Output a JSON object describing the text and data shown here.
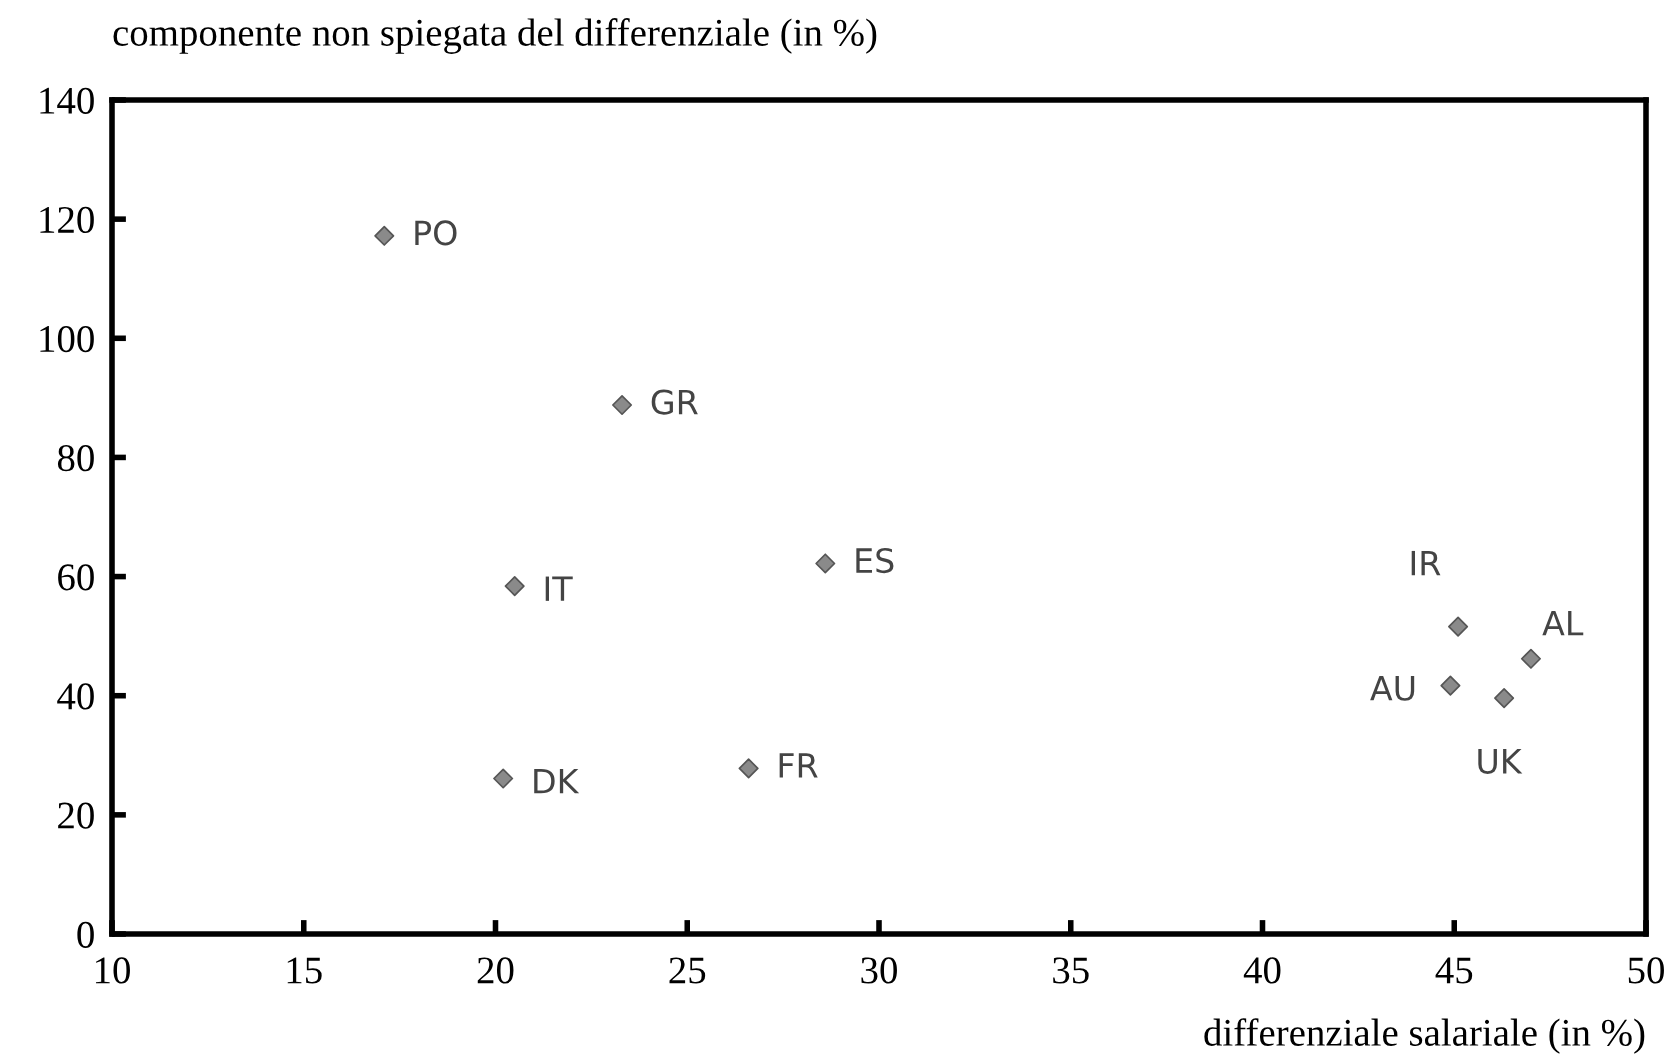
{
  "chart_data": {
    "type": "scatter",
    "ylabel": "componente non spiegata del differenziale (in %)",
    "xlabel": "differenziale salariale (in %)",
    "x": [
      17.1,
      23.3,
      20.5,
      28.6,
      20.2,
      26.6,
      45.1,
      47.0,
      44.9,
      46.3
    ],
    "series": [
      {
        "color": "#8a8a8a",
        "values": [
          117.2,
          88.8,
          58.4,
          62.2,
          26.1,
          27.8,
          51.6,
          46.2,
          41.7,
          39.6
        ]
      }
    ],
    "annotations": [
      {
        "text": "PO",
        "x": 17.1,
        "y": 117.2
      },
      {
        "text": "GR",
        "x": 23.3,
        "y": 88.8
      },
      {
        "text": "IT",
        "x": 20.5,
        "y": 58.4
      },
      {
        "text": "ES",
        "x": 28.6,
        "y": 62.2
      },
      {
        "text": "DK",
        "x": 20.2,
        "y": 26.1
      },
      {
        "text": "FR",
        "x": 26.6,
        "y": 27.8
      },
      {
        "text": "IR",
        "x": 45.1,
        "y": 51.6
      },
      {
        "text": "AL",
        "x": 47.0,
        "y": 46.2
      },
      {
        "text": "AU",
        "x": 44.9,
        "y": 41.7
      },
      {
        "text": "UK",
        "x": 46.3,
        "y": 39.6
      }
    ],
    "xlim": [
      10,
      50
    ],
    "xticks": [
      10,
      15,
      20,
      25,
      30,
      35,
      40,
      45,
      50
    ],
    "ylim": [
      0,
      140
    ],
    "yticks": [
      0,
      20,
      40,
      60,
      80,
      100,
      120,
      140
    ],
    "marker": "diamond",
    "grid": false,
    "legend": false
  }
}
